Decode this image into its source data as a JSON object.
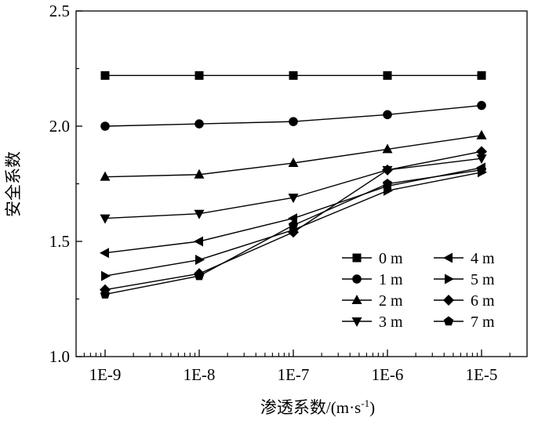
{
  "chart_data": {
    "type": "line",
    "title": "",
    "xlabel": "渗透系数/(m·s",
    "xlabel_sup": "-1",
    "xlabel_close": ")",
    "ylabel": "安全系数",
    "categories": [
      "1E-9",
      "1E-8",
      "1E-7",
      "1E-6",
      "1E-5"
    ],
    "y_ticks": [
      "1.0",
      "1.5",
      "2.0",
      "2.5"
    ],
    "ylim": [
      1.0,
      2.5
    ],
    "grid": false,
    "legend_position": "bottom-right",
    "series": [
      {
        "name": "0 m",
        "marker": "square",
        "values": [
          2.22,
          2.22,
          2.22,
          2.22,
          2.22
        ]
      },
      {
        "name": "1 m",
        "marker": "circle",
        "values": [
          2.0,
          2.01,
          2.02,
          2.05,
          2.09
        ]
      },
      {
        "name": "2 m",
        "marker": "triangle-up",
        "values": [
          1.78,
          1.79,
          1.84,
          1.9,
          1.96
        ]
      },
      {
        "name": "3 m",
        "marker": "triangle-down",
        "values": [
          1.6,
          1.62,
          1.69,
          1.81,
          1.86
        ]
      },
      {
        "name": "4 m",
        "marker": "triangle-left",
        "values": [
          1.45,
          1.5,
          1.6,
          1.74,
          1.82
        ]
      },
      {
        "name": "5 m",
        "marker": "triangle-right",
        "values": [
          1.35,
          1.42,
          1.55,
          1.72,
          1.8
        ]
      },
      {
        "name": "6 m",
        "marker": "diamond",
        "values": [
          1.29,
          1.36,
          1.54,
          1.81,
          1.89
        ]
      },
      {
        "name": "7 m",
        "marker": "pentagon",
        "values": [
          1.27,
          1.35,
          1.57,
          1.75,
          1.81
        ]
      }
    ]
  }
}
